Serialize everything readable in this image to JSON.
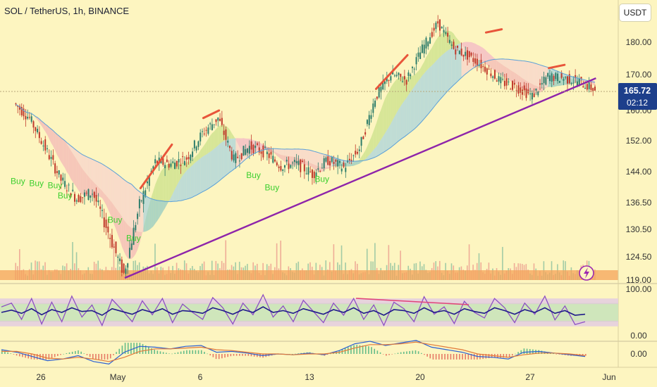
{
  "header": {
    "title": "SOL / TetherUS, 1h, BINANCE",
    "currency_button": "USDT"
  },
  "price_badge": {
    "price": "165.72",
    "countdown": "02:12"
  },
  "colors": {
    "background": "#fdf5c0",
    "trendline": "#8e24aa",
    "badge": "#1d3f8b",
    "rsi_line": "#8e50c4",
    "stoch_line": "#1f1a8a",
    "divergence_line": "#e0457a",
    "buy_label": "#3ccf2e",
    "candle_up": "#2e7d6b",
    "candle_down": "#c0392b"
  },
  "icons": {
    "lightning": "lightning-icon"
  },
  "chart_data": [
    {
      "type": "candlestick",
      "title": "SOL / TetherUS, 1h, BINANCE",
      "x_ticks": [
        "26",
        "May",
        "6",
        "13",
        "20",
        "27",
        "Jun"
      ],
      "y_ticks": [
        "180.00",
        "170.00",
        "160.00",
        "152.00",
        "144.00",
        "136.50",
        "130.50",
        "124.50",
        "119.00"
      ],
      "last_price": 165.72,
      "price_series": [
        {
          "x": "2024-04-24",
          "y": 162.0
        },
        {
          "x": "2024-04-25",
          "y": 158.0
        },
        {
          "x": "2024-04-26",
          "y": 150.0
        },
        {
          "x": "2024-04-27",
          "y": 142.0
        },
        {
          "x": "2024-04-28",
          "y": 137.5
        },
        {
          "x": "2024-04-29",
          "y": 139.0
        },
        {
          "x": "2024-04-30",
          "y": 130.0
        },
        {
          "x": "2024-05-01",
          "y": 120.5
        },
        {
          "x": "2024-05-02",
          "y": 136.0
        },
        {
          "x": "2024-05-03",
          "y": 146.5
        },
        {
          "x": "2024-05-04",
          "y": 146.0
        },
        {
          "x": "2024-05-05",
          "y": 147.5
        },
        {
          "x": "2024-05-06",
          "y": 154.0
        },
        {
          "x": "2024-05-07",
          "y": 158.0
        },
        {
          "x": "2024-05-08",
          "y": 147.0
        },
        {
          "x": "2024-05-09",
          "y": 150.5
        },
        {
          "x": "2024-05-10",
          "y": 149.0
        },
        {
          "x": "2024-05-11",
          "y": 145.5
        },
        {
          "x": "2024-05-12",
          "y": 146.0
        },
        {
          "x": "2024-05-13",
          "y": 143.5
        },
        {
          "x": "2024-05-14",
          "y": 147.0
        },
        {
          "x": "2024-05-15",
          "y": 145.0
        },
        {
          "x": "2024-05-16",
          "y": 150.0
        },
        {
          "x": "2024-05-17",
          "y": 163.5
        },
        {
          "x": "2024-05-18",
          "y": 170.0
        },
        {
          "x": "2024-05-19",
          "y": 168.5
        },
        {
          "x": "2024-05-20",
          "y": 178.0
        },
        {
          "x": "2024-05-21",
          "y": 186.0
        },
        {
          "x": "2024-05-22",
          "y": 178.0
        },
        {
          "x": "2024-05-23",
          "y": 175.5
        },
        {
          "x": "2024-05-24",
          "y": 172.0
        },
        {
          "x": "2024-05-25",
          "y": 168.0
        },
        {
          "x": "2024-05-26",
          "y": 166.5
        },
        {
          "x": "2024-05-27",
          "y": 164.0
        },
        {
          "x": "2024-05-28",
          "y": 169.5
        },
        {
          "x": "2024-05-29",
          "y": 169.0
        },
        {
          "x": "2024-05-30",
          "y": 168.0
        },
        {
          "x": "2024-05-31",
          "y": 165.72
        }
      ],
      "trendline": [
        {
          "x": "2024-05-01",
          "y": 119.5
        },
        {
          "x": "2024-05-31",
          "y": 169.0
        }
      ],
      "buy_labels": [
        {
          "text": "Buy",
          "x": "2024-04-24",
          "y": 141.0
        },
        {
          "text": "Buy",
          "x": "2024-04-25",
          "y": 140.5
        },
        {
          "text": "Buy",
          "x": "2024-04-26",
          "y": 140.0
        },
        {
          "text": "Buy",
          "x": "2024-04-27",
          "y": 137.5
        },
        {
          "text": "Buy",
          "x": "2024-04-30",
          "y": 132.0
        },
        {
          "text": "Buy",
          "x": "2024-05-01",
          "y": 128.0
        },
        {
          "text": "Buy",
          "x": "2024-05-09",
          "y": 142.5
        },
        {
          "text": "Buy",
          "x": "2024-05-10",
          "y": 139.5
        },
        {
          "text": "Buy",
          "x": "2024-05-13",
          "y": 141.5
        }
      ]
    },
    {
      "type": "line",
      "y_ticks": [
        "100.00",
        "0.00"
      ],
      "ylim": [
        0,
        100
      ],
      "series": [
        {
          "values": [
            62,
            70,
            35,
            80,
            25,
            72,
            30,
            85,
            40,
            66,
            22,
            78,
            55,
            30,
            75,
            45,
            80,
            28,
            68,
            50,
            35,
            82,
            60,
            25,
            70,
            45,
            88,
            40,
            64,
            30,
            76,
            52,
            28,
            70,
            44,
            80,
            35,
            66,
            22,
            72,
            58,
            30,
            84,
            46,
            62,
            26,
            74,
            50,
            38,
            80,
            60,
            28,
            70,
            46,
            85,
            34,
            64,
            24,
            30
          ]
        },
        {
          "values": [
            50,
            55,
            48,
            58,
            45,
            56,
            50,
            60,
            52,
            54,
            44,
            58,
            52,
            46,
            56,
            50,
            58,
            46,
            54,
            52,
            48,
            60,
            54,
            46,
            56,
            50,
            62,
            50,
            54,
            48,
            58,
            52,
            46,
            56,
            50,
            60,
            48,
            54,
            44,
            56,
            54,
            48,
            60,
            50,
            54,
            46,
            58,
            52,
            48,
            60,
            54,
            46,
            56,
            50,
            60,
            48,
            54,
            44,
            46
          ]
        }
      ]
    },
    {
      "type": "line",
      "y_ticks": [
        "0.00"
      ],
      "series": [
        {
          "values": [
            0.5,
            0.2,
            -0.3,
            -0.8,
            -0.6,
            -0.2,
            -0.9,
            -1.2,
            0.2,
            0.9,
            0.8,
            0.6,
            0.9,
            1.0,
            0.2,
            0.3,
            0.1,
            -0.2,
            0.0,
            -0.1,
            0.1,
            -0.1,
            0.4,
            1.2,
            1.5,
            1.0,
            1.3,
            1.6,
            0.8,
            0.5,
            0.2,
            -0.3,
            -0.4,
            -0.6,
            0.2,
            0.3,
            0.1,
            -0.1,
            -0.3
          ]
        },
        {
          "values": [
            0.3,
            0.3,
            0.0,
            -0.5,
            -0.6,
            -0.4,
            -0.6,
            -0.9,
            -0.4,
            0.3,
            0.6,
            0.6,
            0.7,
            0.8,
            0.5,
            0.4,
            0.2,
            0.0,
            0.0,
            -0.1,
            0.0,
            0.0,
            0.2,
            0.7,
            1.1,
            1.1,
            1.2,
            1.4,
            1.1,
            0.8,
            0.5,
            0.0,
            -0.2,
            -0.4,
            -0.1,
            0.1,
            0.1,
            0.0,
            -0.2
          ]
        }
      ]
    }
  ]
}
